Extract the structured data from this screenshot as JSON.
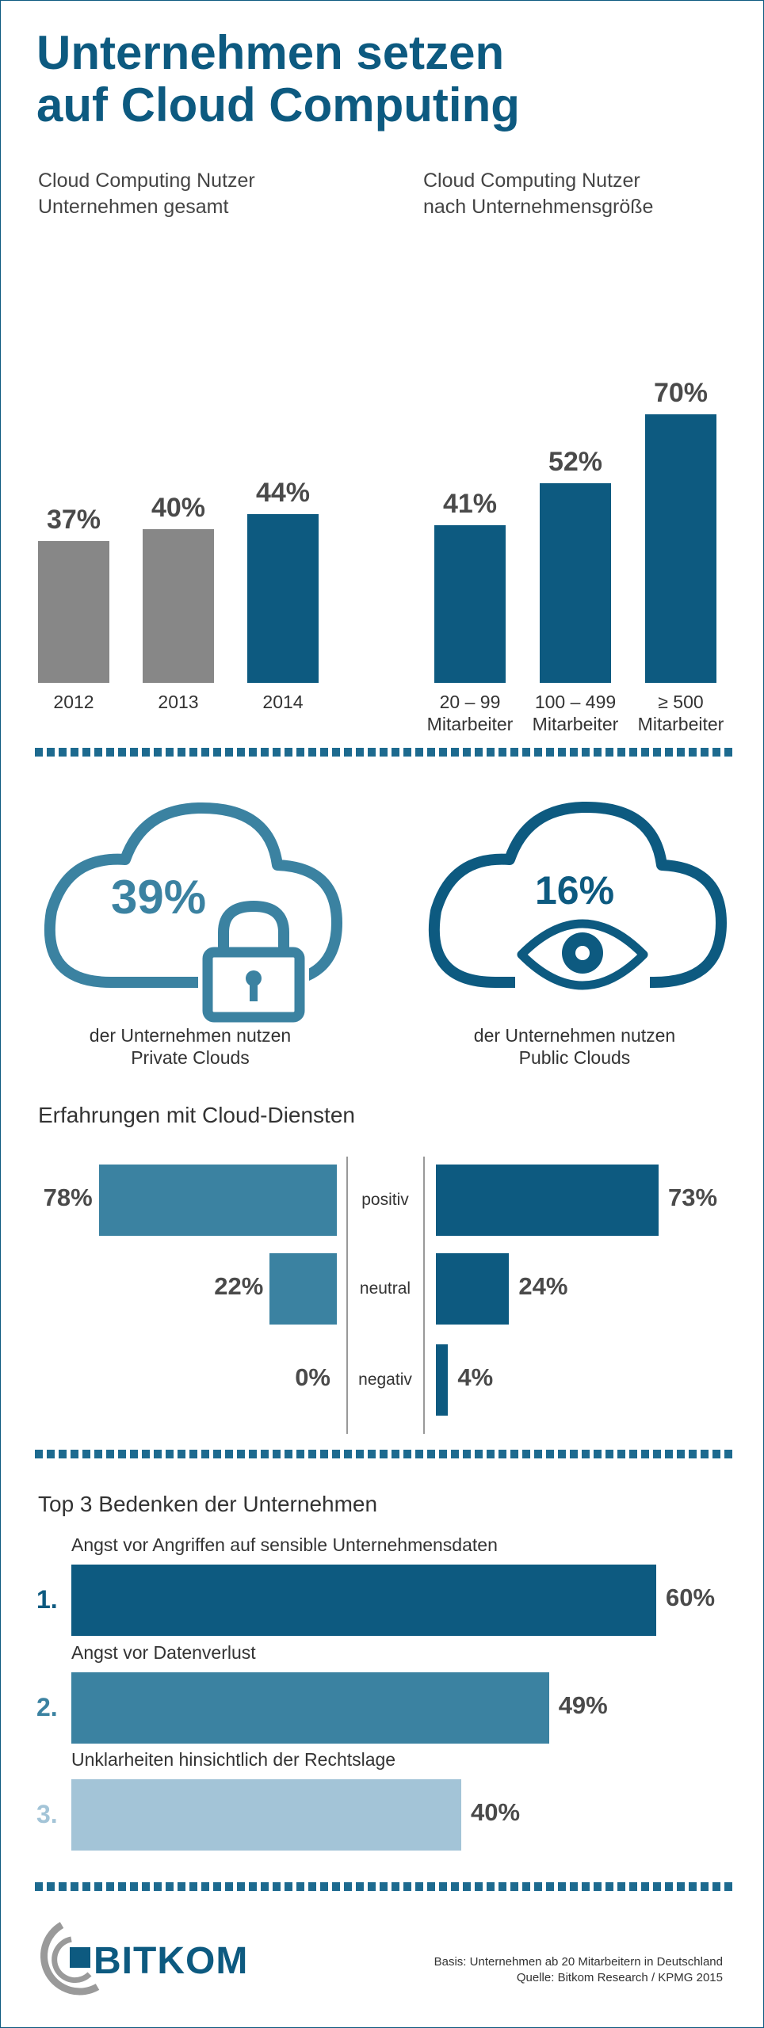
{
  "title_line1": "Unternehmen setzen",
  "title_line2": "auf Cloud Computing",
  "chart_data": [
    {
      "type": "bar",
      "title": "Cloud Computing Nutzer Unternehmen gesamt",
      "title_lines": [
        "Cloud Computing Nutzer",
        "Unternehmen gesamt"
      ],
      "categories": [
        "2012",
        "2013",
        "2014"
      ],
      "values": [
        37,
        40,
        44
      ],
      "labels": [
        "37%",
        "40%",
        "44%"
      ],
      "colors": [
        "#878787",
        "#878787",
        "#0d5a80"
      ]
    },
    {
      "type": "bar",
      "title": "Cloud Computing Nutzer nach Unternehmensgröße",
      "title_lines": [
        "Cloud Computing Nutzer",
        "nach Unternehmensgröße"
      ],
      "categories": [
        [
          "20 – 99",
          "Mitarbeiter"
        ],
        [
          "100 – 499",
          "Mitarbeiter"
        ],
        [
          "≥ 500",
          "Mitarbeiter"
        ]
      ],
      "values": [
        41,
        52,
        70
      ],
      "labels": [
        "41%",
        "52%",
        "70%"
      ],
      "colors": [
        "#0d5a80",
        "#0d5a80",
        "#0d5a80"
      ]
    },
    {
      "type": "bar",
      "title": "Erfahrungen mit Cloud-Diensten",
      "categories": [
        "positiv",
        "neutral",
        "negativ"
      ],
      "series": [
        {
          "values": [
            78,
            22,
            0
          ],
          "labels": [
            "78%",
            "22%",
            "0%"
          ],
          "color": "#3b82a1"
        },
        {
          "values": [
            73,
            24,
            4
          ],
          "labels": [
            "73%",
            "24%",
            "4%"
          ],
          "color": "#0d5a80"
        }
      ]
    },
    {
      "type": "bar",
      "title": "Top 3 Bedenken der Unternehmen",
      "ranks": [
        "1.",
        "2.",
        "3."
      ],
      "categories": [
        "Angst vor Angriffen auf sensible Unternehmensdaten",
        "Angst vor Datenverlust",
        "Unklarheiten hinsichtlich der Rechtslage"
      ],
      "values": [
        60,
        49,
        40
      ],
      "labels": [
        "60%",
        "49%",
        "40%"
      ],
      "colors": [
        "#0d5a80",
        "#3b82a1",
        "#a3c4d7"
      ]
    }
  ],
  "clouds": {
    "private": {
      "value": "39%",
      "line1": "der Unternehmen nutzen",
      "line2": "Private Clouds",
      "color": "#3b82a1",
      "icon": "lock-icon"
    },
    "public": {
      "value": "16%",
      "line1": "der Unternehmen nutzen",
      "line2": "Public Clouds",
      "color": "#0d5a80",
      "icon": "eye-icon"
    }
  },
  "logo": {
    "text": "BITKOM"
  },
  "footnote": {
    "line1": "Basis: Unternehmen ab 20 Mitarbeitern in Deutschland",
    "line2": "Quelle: Bitkom Research / KPMG 2015"
  }
}
